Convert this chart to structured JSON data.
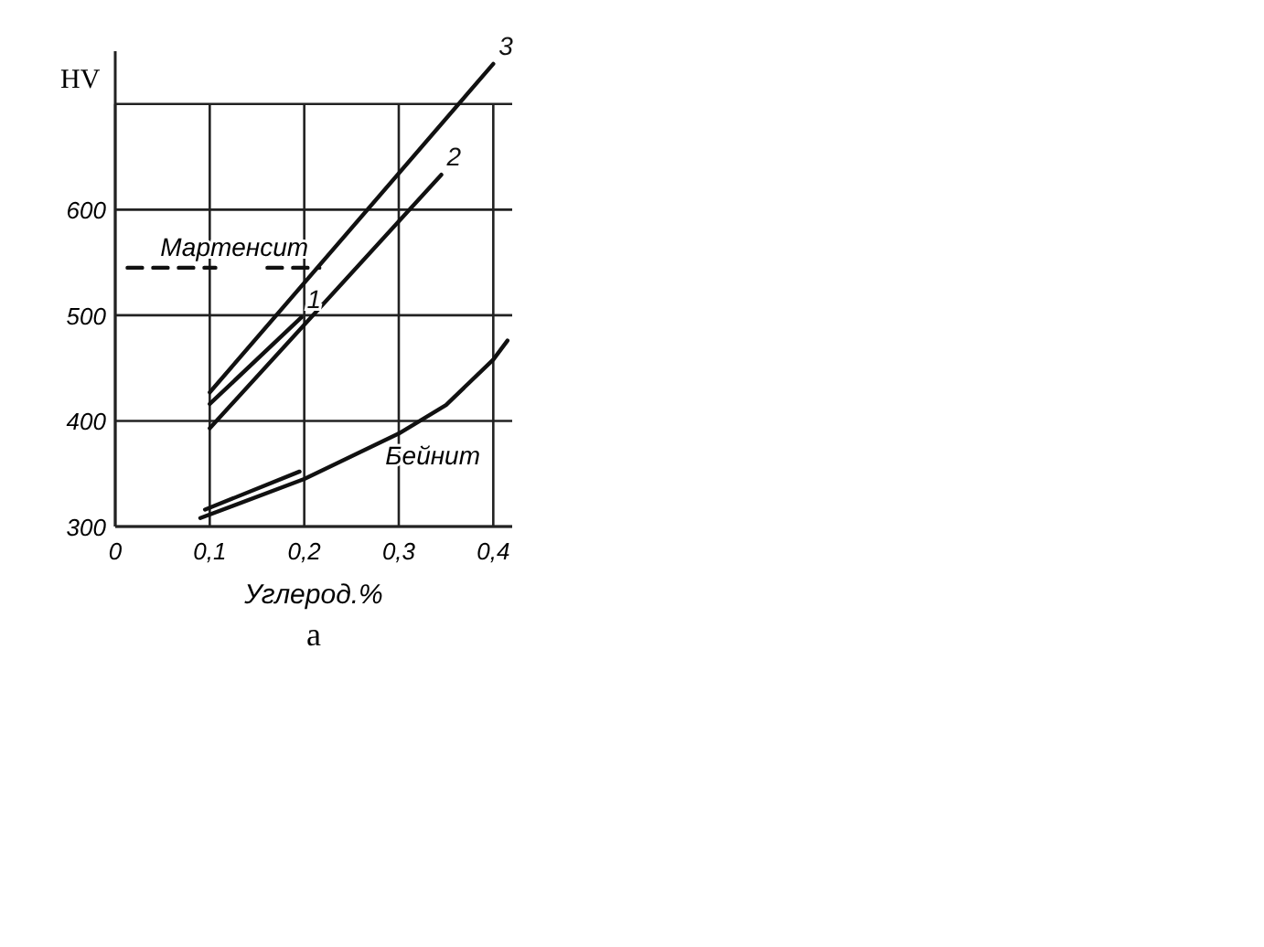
{
  "chart_data": {
    "type": "line",
    "xlabel": "Углерод.%",
    "ylabel": "HV",
    "xlim": [
      0,
      0.42
    ],
    "xticks": [
      0,
      {
        "value": 0.1,
        "label": "0,1"
      },
      {
        "value": 0.2,
        "label": "0,2"
      },
      {
        "value": 0.3,
        "label": "0,3"
      },
      {
        "value": 0.4,
        "label": "0,4"
      }
    ],
    "ylim": [
      300,
      750
    ],
    "yticks": [
      300,
      400,
      500,
      600,
      {
        "value": 700,
        "label": null
      }
    ],
    "grid": true,
    "series": [
      {
        "name": "3",
        "color": "#111111",
        "x": [
          0.1,
          0.4
        ],
        "values": [
          427,
          738
        ]
      },
      {
        "name": "1",
        "color": "#111111",
        "x": [
          0.1,
          0.197
        ],
        "values": [
          416,
          498
        ]
      },
      {
        "name": "2",
        "color": "#111111",
        "x": [
          0.1,
          0.345
        ],
        "values": [
          393,
          633
        ]
      },
      {
        "color": "#111111",
        "x": [
          0.095,
          0.195
        ],
        "values": [
          316,
          352
        ]
      },
      {
        "color": "#111111",
        "x": [
          0.09,
          0.2,
          0.3,
          0.35,
          0.4,
          0.415
        ],
        "values": [
          308,
          345,
          388,
          415,
          458,
          476
        ]
      },
      {
        "color": "#111111",
        "line_style": "dashed",
        "x": [
          0.013,
          0.106,
          0.13,
          0.161,
          0.216
        ],
        "values": [
          545,
          545,
          null,
          545,
          545
        ]
      }
    ],
    "annotations": [
      "Мартенсит",
      "Бейнит",
      "а"
    ]
  }
}
